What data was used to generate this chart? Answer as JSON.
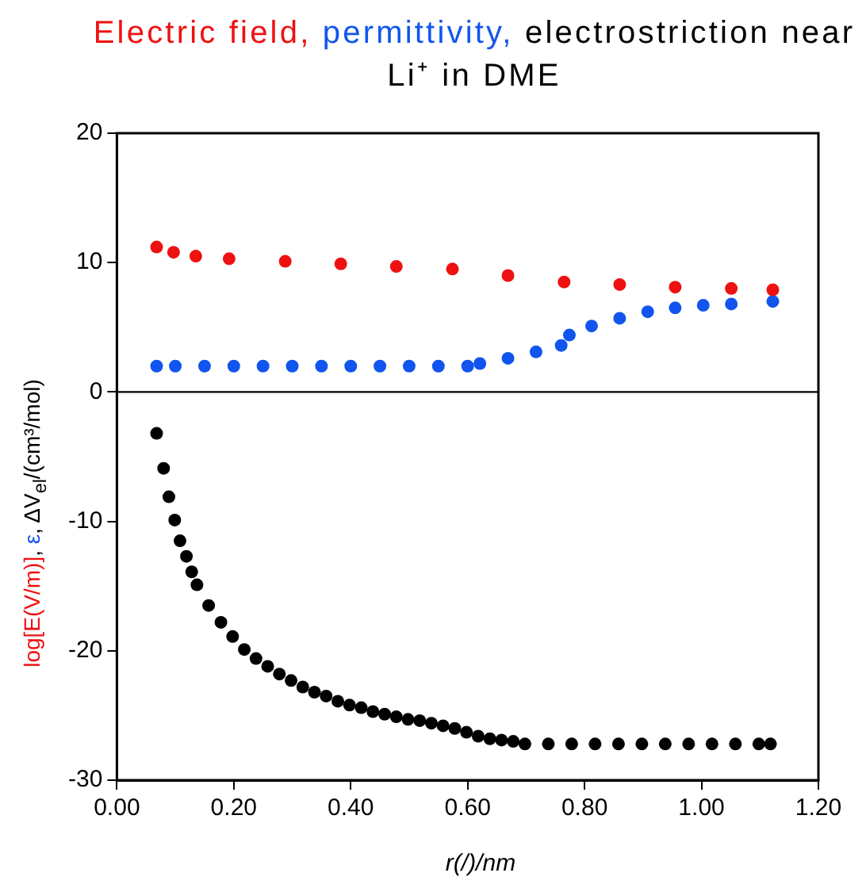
{
  "chart_data": {
    "type": "scatter",
    "title": "Electric field, permittivity, electrostriction near Li⁺ in DME",
    "xlabel": "r(/)/nm",
    "ylabel": "log[E(V/m)], ε, ΔV$_{el}$/(cm³/mol)",
    "xlim": [
      0,
      1.2
    ],
    "xticks": [
      {
        "value": 0,
        "label": "0.00"
      },
      {
        "value": 0.2,
        "label": "0.20"
      },
      {
        "value": 0.4,
        "label": "0.40"
      },
      {
        "value": 0.6,
        "label": "0.60"
      },
      {
        "value": 0.8,
        "label": "0.80"
      },
      {
        "value": 1,
        "label": "1.00"
      },
      {
        "value": 1.2,
        "label": "1.20"
      }
    ],
    "ylim": [
      -30,
      20
    ],
    "yticks": [
      -30,
      -20,
      -10,
      0,
      10,
      20
    ],
    "grid": false,
    "legend": false,
    "marker": "circle",
    "ref_lines": [
      {
        "axis": "y",
        "value": 0,
        "color": "#000000"
      }
    ],
    "series": [
      {
        "color": "#ee1111",
        "x": [
          0.068,
          0.097,
          0.135,
          0.192,
          0.288,
          0.383,
          0.478,
          0.574,
          0.669,
          0.765,
          0.86,
          0.955,
          1.051,
          1.122
        ],
        "values": [
          11.2,
          10.8,
          10.5,
          10.3,
          10.1,
          9.9,
          9.7,
          9.5,
          9.0,
          8.5,
          8.3,
          8.1,
          8.0,
          7.9
        ]
      },
      {
        "color": "#1155ee",
        "x": [
          0.068,
          0.1,
          0.15,
          0.2,
          0.25,
          0.3,
          0.35,
          0.4,
          0.45,
          0.5,
          0.55,
          0.6,
          0.621,
          0.669,
          0.717,
          0.76,
          0.774,
          0.812,
          0.86,
          0.908,
          0.955,
          1.003,
          1.051,
          1.122
        ],
        "values": [
          2.0,
          2.0,
          2.0,
          2.0,
          2.0,
          2.0,
          2.0,
          2.0,
          2.0,
          2.0,
          2.0,
          2.0,
          2.2,
          2.6,
          3.1,
          3.6,
          4.4,
          5.1,
          5.7,
          6.2,
          6.5,
          6.7,
          6.8,
          7.0
        ]
      },
      {
        "color": "#000000",
        "x": [
          0.068,
          0.08,
          0.089,
          0.099,
          0.108,
          0.119,
          0.128,
          0.137,
          0.157,
          0.178,
          0.198,
          0.218,
          0.238,
          0.258,
          0.278,
          0.298,
          0.318,
          0.338,
          0.358,
          0.378,
          0.398,
          0.418,
          0.438,
          0.458,
          0.478,
          0.498,
          0.518,
          0.538,
          0.558,
          0.578,
          0.598,
          0.618,
          0.638,
          0.658,
          0.678,
          0.698,
          0.738,
          0.778,
          0.818,
          0.858,
          0.898,
          0.938,
          0.978,
          1.018,
          1.058,
          1.098,
          1.118
        ],
        "values": [
          -3.2,
          -5.9,
          -8.1,
          -9.9,
          -11.5,
          -12.7,
          -13.9,
          -14.9,
          -16.5,
          -17.8,
          -18.9,
          -19.9,
          -20.6,
          -21.2,
          -21.8,
          -22.3,
          -22.8,
          -23.2,
          -23.5,
          -23.9,
          -24.2,
          -24.4,
          -24.7,
          -24.9,
          -25.1,
          -25.3,
          -25.4,
          -25.6,
          -25.8,
          -26.0,
          -26.3,
          -26.6,
          -26.8,
          -26.9,
          -27.0,
          -27.2,
          -27.2,
          -27.2,
          -27.2,
          -27.2,
          -27.2,
          -27.2,
          -27.2,
          -27.2,
          -27.2,
          -27.2,
          -27.2
        ]
      }
    ]
  }
}
